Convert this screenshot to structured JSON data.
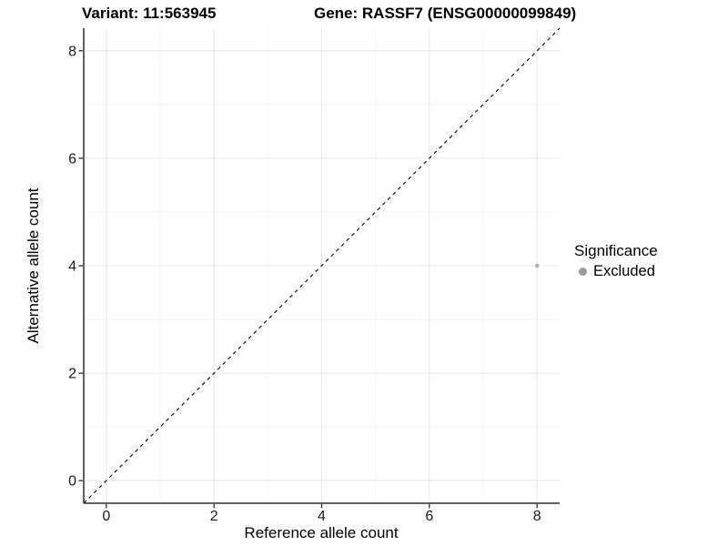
{
  "titles": {
    "variant": "Variant: 11:563945",
    "gene": "Gene: RASSF7 (ENSG00000099849)"
  },
  "chart_data": {
    "type": "scatter",
    "xlabel": "Reference allele count",
    "ylabel": "Alternative allele count",
    "xlim": [
      -0.42,
      8.42
    ],
    "ylim": [
      -0.42,
      8.42
    ],
    "xticks": [
      0,
      2,
      4,
      6,
      8
    ],
    "yticks": [
      0,
      2,
      4,
      6,
      8
    ],
    "minor_xticks": [
      1,
      3,
      5,
      7
    ],
    "minor_yticks": [
      1,
      3,
      5,
      7
    ],
    "grid": "major+minor",
    "points": [
      {
        "x": 8,
        "y": 4,
        "series": "Excluded"
      }
    ],
    "reference_line": {
      "type": "identity y=x",
      "from": [
        -0.42,
        -0.42
      ],
      "to": [
        8.42,
        8.42
      ],
      "style": "dashed",
      "color": "#000000"
    },
    "legend": {
      "title": "Significance",
      "position": "right",
      "items": [
        {
          "label": "Excluded",
          "color": "#9d9d9d"
        }
      ]
    },
    "colors": {
      "point": "#b0b0b0",
      "grid_major": "#e6e6e6",
      "grid_minor": "#f2f2f2",
      "axis_line": "#2b2b2b",
      "tick_label": "#1a1a1a"
    }
  }
}
